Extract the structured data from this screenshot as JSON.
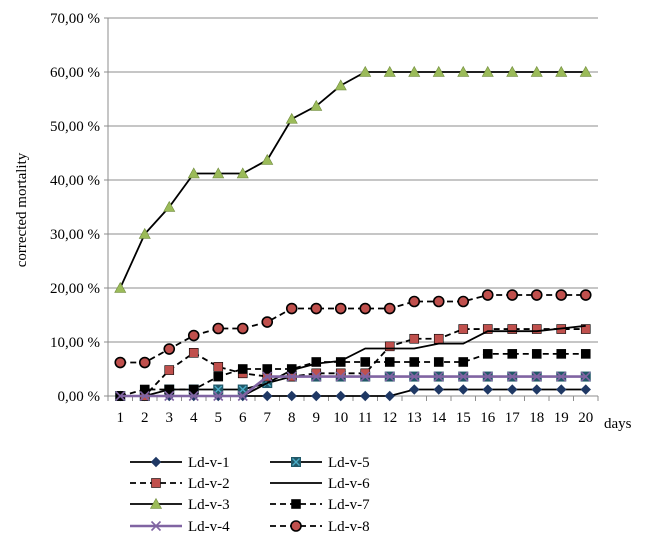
{
  "chart_data": {
    "type": "line",
    "title": "",
    "xlabel": "days",
    "ylabel": "corrected mortality",
    "x": [
      1,
      2,
      3,
      4,
      5,
      6,
      7,
      8,
      9,
      10,
      11,
      12,
      13,
      14,
      15,
      16,
      17,
      18,
      19,
      20
    ],
    "ylim": [
      0,
      70
    ],
    "yticks": [
      0,
      10,
      20,
      30,
      40,
      50,
      60,
      70
    ],
    "ytick_labels": [
      "0,00 %",
      "10,00 %",
      "20,00 %",
      "30,00 %",
      "40,00 %",
      "50,00 %",
      "60,00 %",
      "70,00 %"
    ],
    "grid": "horizontal",
    "legend_position": "bottom",
    "series": [
      {
        "name": "Ld-v-1",
        "color": "#1f3864",
        "line": "solid",
        "marker": "diamond",
        "values": [
          0,
          0,
          0,
          0,
          0,
          0,
          0,
          0,
          0,
          0,
          0,
          0,
          1.2,
          1.2,
          1.2,
          1.2,
          1.2,
          1.2,
          1.2,
          1.2
        ]
      },
      {
        "name": "Ld-v-5",
        "color": "#215868",
        "line": "solid",
        "marker": "square-x",
        "values": [
          0,
          0,
          1.2,
          1.2,
          1.2,
          1.2,
          2.4,
          3.6,
          3.6,
          3.6,
          3.6,
          3.6,
          3.6,
          3.6,
          3.6,
          3.6,
          3.6,
          3.6,
          3.6,
          3.6
        ]
      },
      {
        "name": "Ld-v-2",
        "color": "#c0504d",
        "line": "dashed",
        "marker": "square",
        "values": [
          0,
          0,
          4.8,
          8.0,
          5.4,
          4.2,
          3.6,
          3.6,
          4.2,
          4.2,
          4.2,
          9.2,
          10.6,
          10.6,
          12.4,
          12.4,
          12.4,
          12.4,
          12.4,
          12.4
        ]
      },
      {
        "name": "Ld-v-6",
        "color": "#000000",
        "line": "solid",
        "marker": "none",
        "values": [
          0,
          0,
          0,
          0,
          0,
          0,
          2.4,
          4.8,
          6.0,
          6.5,
          8.8,
          8.8,
          8.8,
          9.7,
          9.7,
          12.0,
          12.0,
          12.0,
          12.5,
          13.0
        ]
      },
      {
        "name": "Ld-v-3",
        "color": "#9bbb59",
        "line": "solid",
        "marker": "triangle",
        "values": [
          20.0,
          30.0,
          35.0,
          41.2,
          41.2,
          41.2,
          43.7,
          51.3,
          53.7,
          57.5,
          60.0,
          60.0,
          60.0,
          60.0,
          60.0,
          60.0,
          60.0,
          60.0,
          60.0,
          60.0
        ]
      },
      {
        "name": "Ld-v-7",
        "color": "#000000",
        "line": "dashed",
        "marker": "square",
        "values": [
          0,
          1.2,
          1.2,
          1.2,
          3.6,
          5.0,
          5.0,
          5.0,
          6.3,
          6.3,
          6.3,
          6.3,
          6.3,
          6.3,
          6.3,
          7.8,
          7.8,
          7.8,
          7.8,
          7.8
        ]
      },
      {
        "name": "Ld-v-4",
        "color": "#8064a2",
        "line": "solid",
        "marker": "x",
        "values": [
          0,
          0,
          0,
          0,
          0,
          0,
          3.6,
          3.6,
          3.6,
          3.6,
          3.6,
          3.6,
          3.6,
          3.6,
          3.6,
          3.6,
          3.6,
          3.6,
          3.6,
          3.6
        ]
      },
      {
        "name": "Ld-v-8",
        "color": "#c0504d",
        "line": "dashed",
        "marker": "circle",
        "values": [
          6.2,
          6.2,
          8.7,
          11.2,
          12.5,
          12.5,
          13.7,
          16.2,
          16.2,
          16.2,
          16.2,
          16.2,
          17.5,
          17.5,
          17.5,
          18.7,
          18.7,
          18.7,
          18.7,
          18.7
        ]
      }
    ]
  }
}
